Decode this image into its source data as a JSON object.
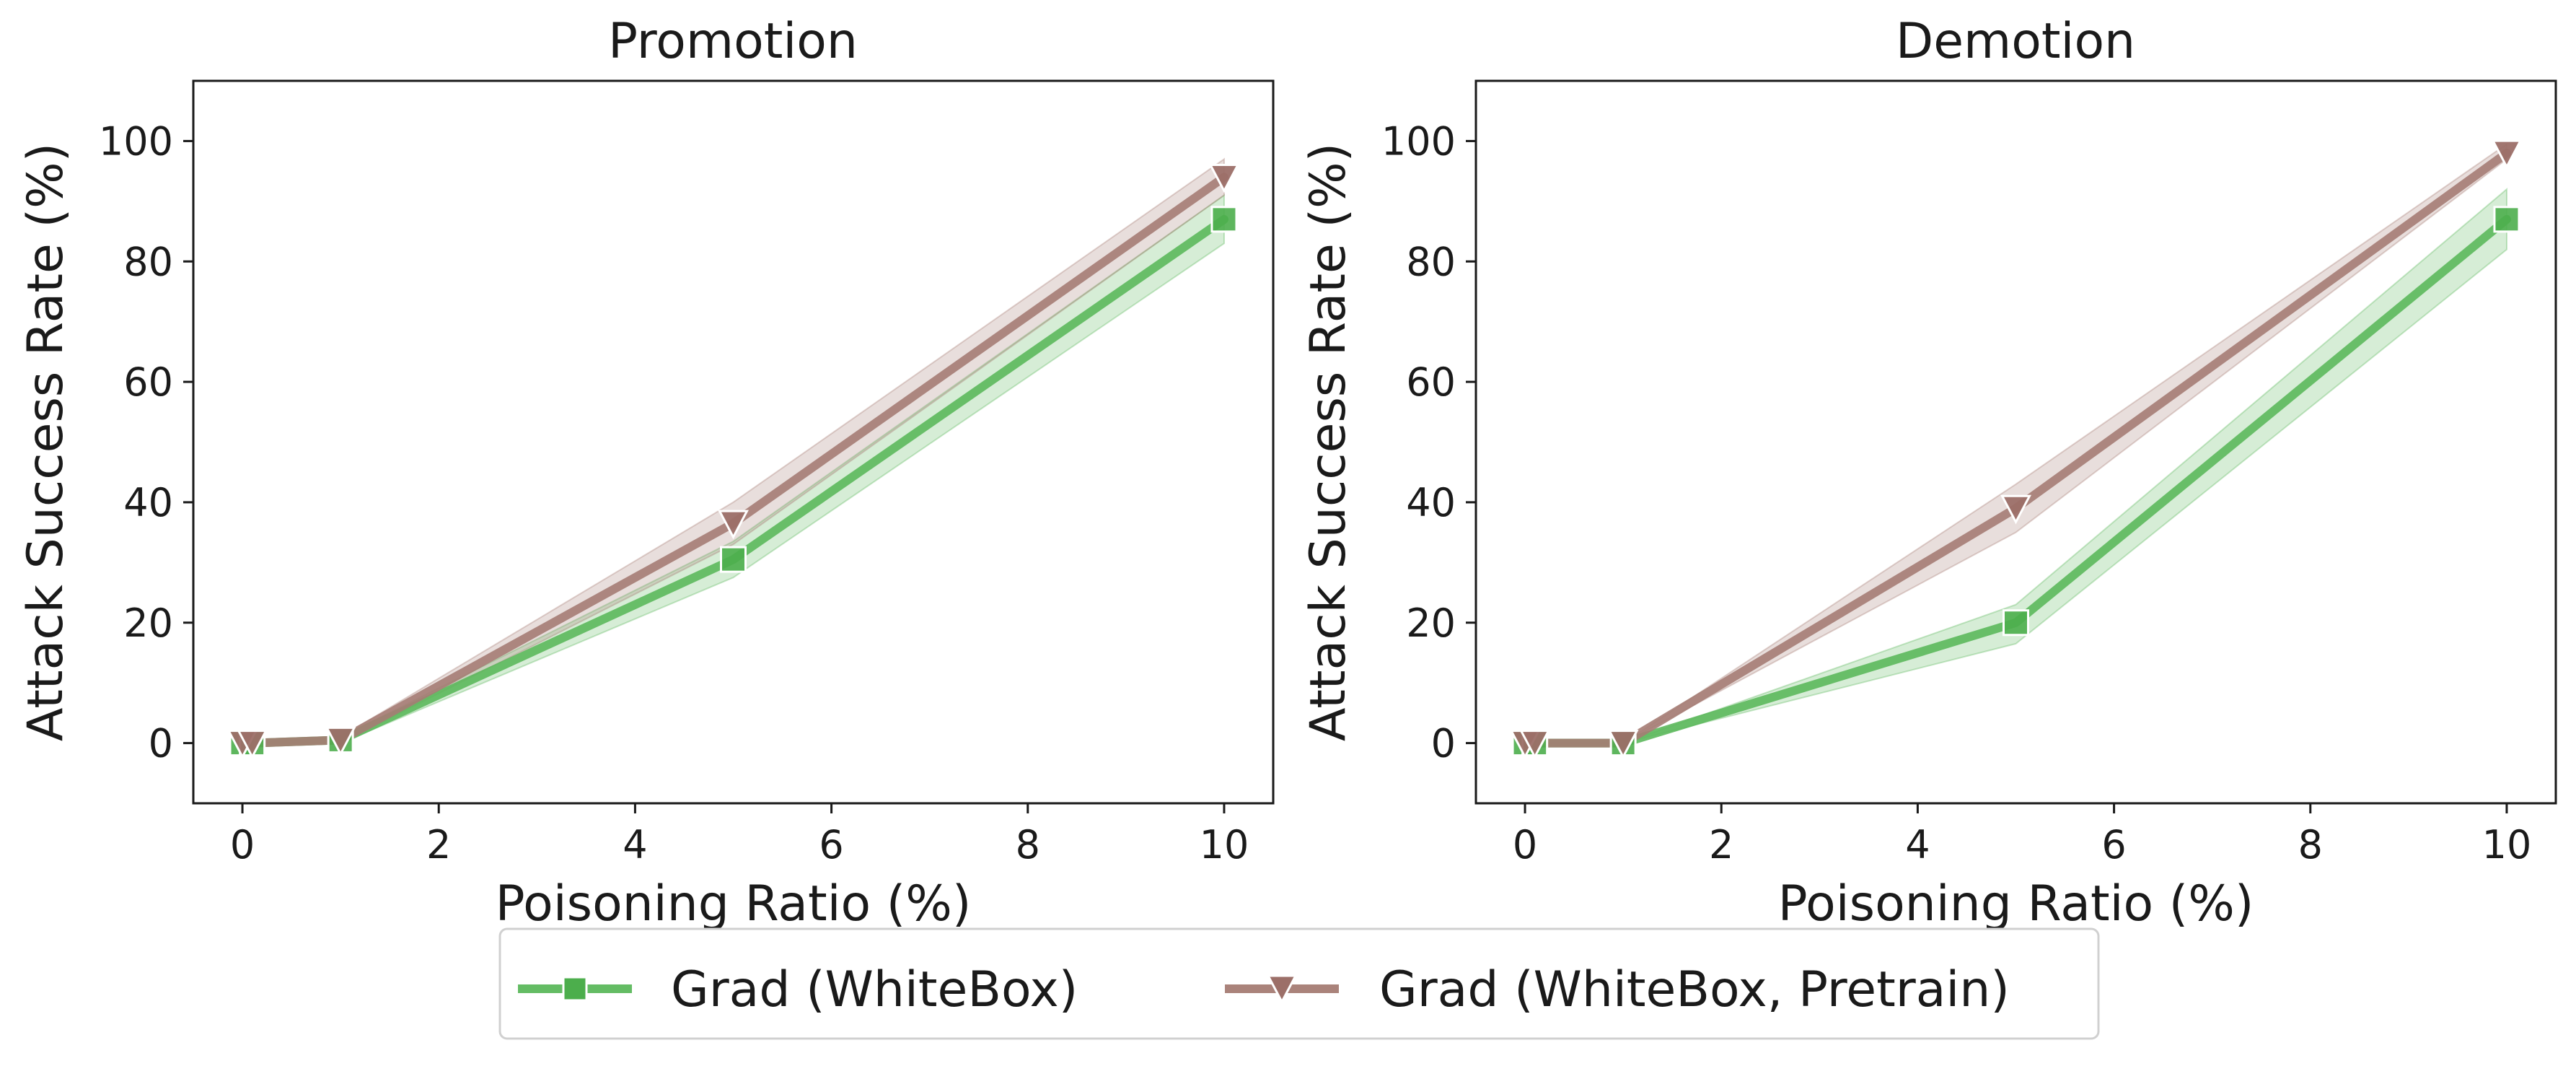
{
  "chart_data": [
    {
      "type": "line",
      "title": "Promotion",
      "xlabel": "Poisoning Ratio (%)",
      "ylabel": "Attack Success Rate (%)",
      "xlim": [
        -0.5,
        10.5
      ],
      "ylim": [
        -10,
        110
      ],
      "xticks": [
        0,
        2,
        4,
        6,
        8,
        10
      ],
      "yticks": [
        0,
        20,
        40,
        60,
        80,
        100
      ],
      "grid": false,
      "series": [
        {
          "name": "Grad (WhiteBox)",
          "color": "#5cb85c",
          "marker": "square",
          "x": [
            0,
            0.1,
            1,
            5,
            10
          ],
          "y": [
            0,
            0,
            0.5,
            30.5,
            87
          ],
          "band_low": [
            0,
            0,
            0,
            27.5,
            83
          ],
          "band_high": [
            0,
            0,
            1,
            33.5,
            91
          ]
        },
        {
          "name": "Grad (WhiteBox, Pretrain)",
          "color": "#a57c74",
          "marker": "triangle-down",
          "x": [
            0,
            0.1,
            1,
            5,
            10
          ],
          "y": [
            0,
            0,
            0.5,
            36.5,
            94
          ],
          "band_low": [
            0,
            0,
            0,
            33,
            91
          ],
          "band_high": [
            0,
            0,
            1,
            40,
            97
          ]
        }
      ]
    },
    {
      "type": "line",
      "title": "Demotion",
      "xlabel": "Poisoning Ratio (%)",
      "ylabel": "Attack Success Rate (%)",
      "xlim": [
        -0.5,
        10.5
      ],
      "ylim": [
        -10,
        110
      ],
      "xticks": [
        0,
        2,
        4,
        6,
        8,
        10
      ],
      "yticks": [
        0,
        20,
        40,
        60,
        80,
        100
      ],
      "grid": false,
      "series": [
        {
          "name": "Grad (WhiteBox)",
          "color": "#5cb85c",
          "marker": "square",
          "x": [
            0,
            0.1,
            1,
            5,
            10
          ],
          "y": [
            0,
            0,
            0,
            20,
            87
          ],
          "band_low": [
            0,
            0,
            0,
            16.5,
            82
          ],
          "band_high": [
            0,
            0,
            0,
            23,
            92
          ]
        },
        {
          "name": "Grad (WhiteBox, Pretrain)",
          "color": "#a57c74",
          "marker": "triangle-down",
          "x": [
            0,
            0.1,
            1,
            5,
            10
          ],
          "y": [
            0,
            0,
            0,
            39,
            98
          ],
          "band_low": [
            0,
            0,
            0,
            35,
            97
          ],
          "band_high": [
            0,
            0,
            0,
            43,
            99.5
          ]
        }
      ]
    }
  ],
  "legend": {
    "placement": "bottom-center",
    "items": [
      {
        "label": "Grad (WhiteBox)",
        "color": "#5cb85c",
        "marker": "square"
      },
      {
        "label": "Grad (WhiteBox, Pretrain)",
        "color": "#a57c74",
        "marker": "triangle-down"
      }
    ]
  }
}
